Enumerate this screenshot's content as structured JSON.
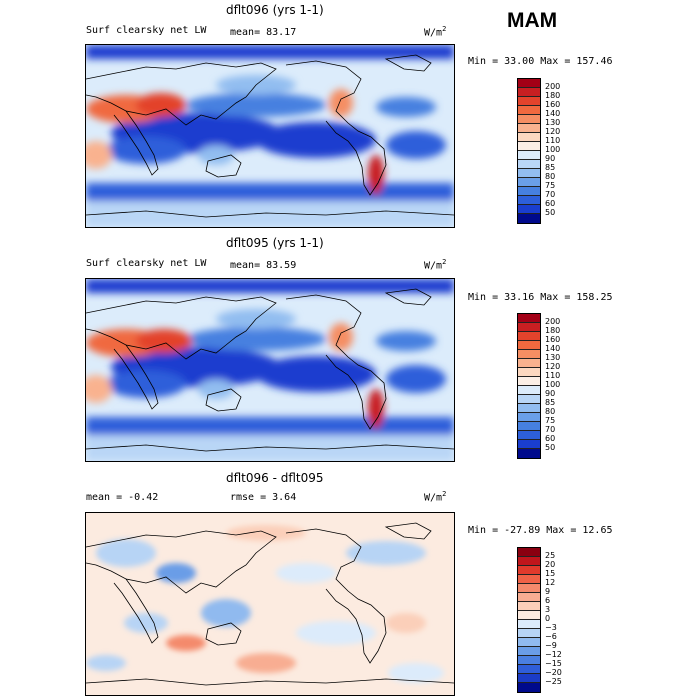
{
  "header": {
    "season": "MAM"
  },
  "panels": [
    {
      "title": "dflt096 (yrs 1-1)",
      "variable": "Surf clearsky net LW",
      "stat1": "mean=  83.17",
      "stat2": "",
      "units": "W/m",
      "units_sup": "2",
      "minmax": "Min =  33.00 Max = 157.46",
      "levels": [
        "200",
        "180",
        "160",
        "140",
        "130",
        "120",
        "110",
        "100",
        "90",
        "85",
        "80",
        "75",
        "70",
        "60",
        "50"
      ],
      "colors": [
        "#a30016",
        "#c81f22",
        "#e3432c",
        "#f0693f",
        "#f58e63",
        "#f9b28f",
        "#fcd8c0",
        "#fbefe6",
        "#dcecfb",
        "#b9d6f6",
        "#92bdf0",
        "#6a9fe8",
        "#4680e0",
        "#2d5fda",
        "#1a3ecf",
        "#000a8c"
      ]
    },
    {
      "title": "dflt095 (yrs 1-1)",
      "variable": "Surf clearsky net LW",
      "stat1": "mean=  83.59",
      "stat2": "",
      "units": "W/m",
      "units_sup": "2",
      "minmax": "Min =  33.16 Max = 158.25",
      "levels": [
        "200",
        "180",
        "160",
        "140",
        "130",
        "120",
        "110",
        "100",
        "90",
        "85",
        "80",
        "75",
        "70",
        "60",
        "50"
      ],
      "colors": [
        "#a30016",
        "#c81f22",
        "#e3432c",
        "#f0693f",
        "#f58e63",
        "#f9b28f",
        "#fcd8c0",
        "#fbefe6",
        "#dcecfb",
        "#b9d6f6",
        "#92bdf0",
        "#6a9fe8",
        "#4680e0",
        "#2d5fda",
        "#1a3ecf",
        "#000a8c"
      ]
    },
    {
      "title": "dflt096 - dflt095",
      "variable": "",
      "stat1": "mean =  -0.42",
      "stat2": "rmse =   3.64",
      "units": "W/m",
      "units_sup": "2",
      "minmax": "Min = -27.89 Max =  12.65",
      "levels": [
        "25",
        "20",
        "15",
        "12",
        "9",
        "6",
        "3",
        "0",
        "−3",
        "−6",
        "−9",
        "−12",
        "−15",
        "−20",
        "−25"
      ],
      "colors": [
        "#8a0010",
        "#c0161c",
        "#e03a2c",
        "#ef6247",
        "#f48a6c",
        "#f8ad92",
        "#fbcfb9",
        "#fcebe0",
        "#dcebfb",
        "#b7d4f5",
        "#90baef",
        "#6a9de7",
        "#4a7fe0",
        "#2f5ed8",
        "#1b3cc6",
        "#000a8c"
      ]
    }
  ],
  "chart_data": [
    {
      "type": "heatmap",
      "title": "dflt096 (yrs 1-1)",
      "subtitle": "Surf clearsky net LW",
      "mean": 83.17,
      "min": 33.0,
      "max": 157.46,
      "units": "W/m2",
      "contour_levels": [
        50,
        60,
        70,
        75,
        80,
        85,
        90,
        100,
        110,
        120,
        130,
        140,
        160,
        180,
        200
      ]
    },
    {
      "type": "heatmap",
      "title": "dflt095 (yrs 1-1)",
      "subtitle": "Surf clearsky net LW",
      "mean": 83.59,
      "min": 33.16,
      "max": 158.25,
      "units": "W/m2",
      "contour_levels": [
        50,
        60,
        70,
        75,
        80,
        85,
        90,
        100,
        110,
        120,
        130,
        140,
        160,
        180,
        200
      ]
    },
    {
      "type": "heatmap",
      "title": "dflt096 - dflt095",
      "mean": -0.42,
      "rmse": 3.64,
      "min": -27.89,
      "max": 12.65,
      "units": "W/m2",
      "contour_levels": [
        -25,
        -20,
        -15,
        -12,
        -9,
        -6,
        -3,
        0,
        3,
        6,
        9,
        12,
        15,
        20,
        25
      ]
    }
  ]
}
